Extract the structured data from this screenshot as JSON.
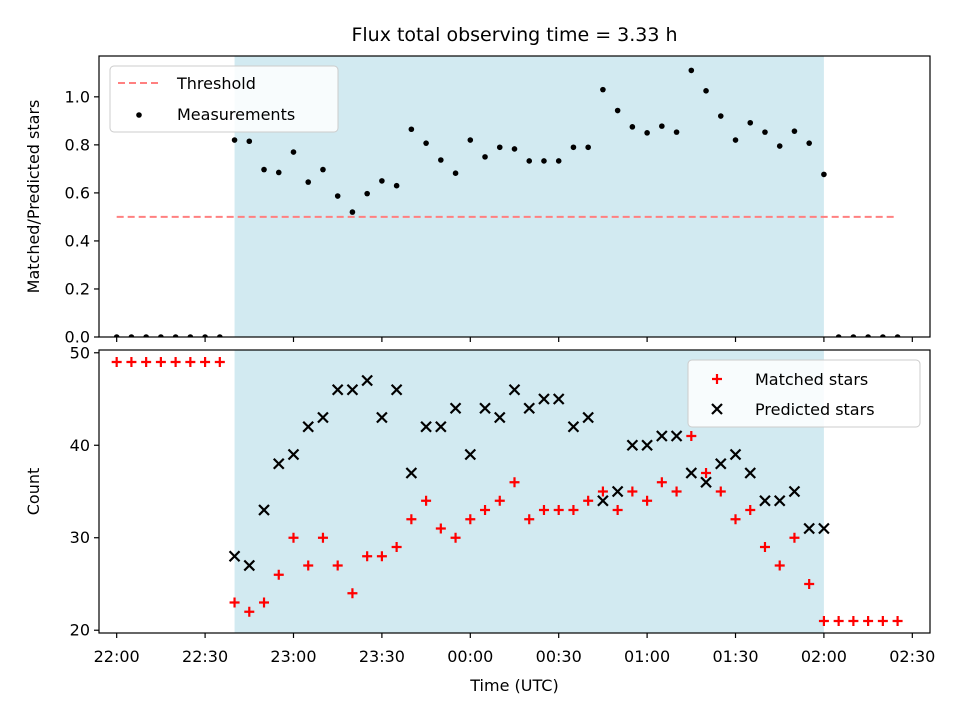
{
  "chart_data": [
    {
      "type": "scatter",
      "title": "Flux total observing time = 3.33 h",
      "xlabel": "",
      "ylabel": "Matched/Predicted stars",
      "xlim": [
        "21:54",
        "02:36"
      ],
      "ylim": [
        0,
        1.17
      ],
      "yticks": [
        "0.0",
        "0.2",
        "0.4",
        "0.6",
        "0.8",
        "1.0"
      ],
      "shaded_span": [
        "22:40",
        "02:00"
      ],
      "shaded_color": "#add8e6",
      "legend": {
        "placement": "upper left"
      },
      "series": [
        {
          "name": "Threshold",
          "style": "dashed-line",
          "color": "#ff8080",
          "points": [
            [
              "22:00",
              0.5
            ],
            [
              "02:25",
              0.5
            ]
          ]
        },
        {
          "name": "Measurements",
          "style": "dot",
          "color": "#000000",
          "points": [
            [
              "22:00",
              0
            ],
            [
              "22:05",
              0
            ],
            [
              "22:10",
              0
            ],
            [
              "22:15",
              0
            ],
            [
              "22:20",
              0
            ],
            [
              "22:25",
              0
            ],
            [
              "22:30",
              0
            ],
            [
              "22:35",
              0
            ],
            [
              "22:40",
              0.82
            ],
            [
              "22:45",
              0.815
            ],
            [
              "22:50",
              0.697
            ],
            [
              "22:55",
              0.685
            ],
            [
              "23:00",
              0.77
            ],
            [
              "23:05",
              0.645
            ],
            [
              "23:10",
              0.697
            ],
            [
              "23:15",
              0.587
            ],
            [
              "23:20",
              0.52
            ],
            [
              "23:25",
              0.597
            ],
            [
              "23:30",
              0.65
            ],
            [
              "23:35",
              0.63
            ],
            [
              "23:40",
              0.865
            ],
            [
              "23:45",
              0.807
            ],
            [
              "23:50",
              0.737
            ],
            [
              "23:55",
              0.682
            ],
            [
              "00:00",
              0.82
            ],
            [
              "00:05",
              0.75
            ],
            [
              "00:10",
              0.79
            ],
            [
              "00:15",
              0.783
            ],
            [
              "00:20",
              0.733
            ],
            [
              "00:25",
              0.733
            ],
            [
              "00:30",
              0.733
            ],
            [
              "00:35",
              0.79
            ],
            [
              "00:40",
              0.79
            ],
            [
              "00:45",
              1.03
            ],
            [
              "00:50",
              0.943
            ],
            [
              "00:55",
              0.875
            ],
            [
              "01:00",
              0.85
            ],
            [
              "01:05",
              0.878
            ],
            [
              "01:10",
              0.853
            ],
            [
              "01:15",
              1.11
            ],
            [
              "01:20",
              1.025
            ],
            [
              "01:25",
              0.92
            ],
            [
              "01:30",
              0.82
            ],
            [
              "01:35",
              0.892
            ],
            [
              "01:40",
              0.853
            ],
            [
              "01:45",
              0.795
            ],
            [
              "01:50",
              0.857
            ],
            [
              "01:55",
              0.807
            ],
            [
              "02:00",
              0.677
            ],
            [
              "02:05",
              0
            ],
            [
              "02:10",
              0
            ],
            [
              "02:15",
              0
            ],
            [
              "02:20",
              0
            ],
            [
              "02:25",
              0
            ]
          ]
        }
      ]
    },
    {
      "type": "scatter",
      "title": "",
      "xlabel": "Time (UTC)",
      "ylabel": "Count",
      "xlim": [
        "21:54",
        "02:36"
      ],
      "ylim": [
        19.7,
        50.3
      ],
      "yticks": [
        "20",
        "30",
        "40",
        "50"
      ],
      "xticks": [
        "22:00",
        "22:30",
        "23:00",
        "23:30",
        "00:00",
        "00:30",
        "01:00",
        "01:30",
        "02:00",
        "02:30"
      ],
      "shaded_span": [
        "22:40",
        "02:00"
      ],
      "shaded_color": "#add8e6",
      "legend": {
        "placement": "upper right"
      },
      "series": [
        {
          "name": "Matched stars",
          "style": "plus",
          "color": "#ff0000",
          "points": [
            [
              "22:00",
              49
            ],
            [
              "22:05",
              49
            ],
            [
              "22:10",
              49
            ],
            [
              "22:15",
              49
            ],
            [
              "22:20",
              49
            ],
            [
              "22:25",
              49
            ],
            [
              "22:30",
              49
            ],
            [
              "22:35",
              49
            ],
            [
              "22:40",
              23
            ],
            [
              "22:45",
              22
            ],
            [
              "22:50",
              23
            ],
            [
              "22:55",
              26
            ],
            [
              "23:00",
              30
            ],
            [
              "23:05",
              27
            ],
            [
              "23:10",
              30
            ],
            [
              "23:15",
              27
            ],
            [
              "23:20",
              24
            ],
            [
              "23:25",
              28
            ],
            [
              "23:30",
              28
            ],
            [
              "23:35",
              29
            ],
            [
              "23:40",
              32
            ],
            [
              "23:45",
              34
            ],
            [
              "23:50",
              31
            ],
            [
              "23:55",
              30
            ],
            [
              "00:00",
              32
            ],
            [
              "00:05",
              33
            ],
            [
              "00:10",
              34
            ],
            [
              "00:15",
              36
            ],
            [
              "00:20",
              32
            ],
            [
              "00:25",
              33
            ],
            [
              "00:30",
              33
            ],
            [
              "00:35",
              33
            ],
            [
              "00:40",
              34
            ],
            [
              "00:45",
              35
            ],
            [
              "00:50",
              33
            ],
            [
              "00:55",
              35
            ],
            [
              "01:00",
              34
            ],
            [
              "01:05",
              36
            ],
            [
              "01:10",
              35
            ],
            [
              "01:15",
              41
            ],
            [
              "01:20",
              37
            ],
            [
              "01:25",
              35
            ],
            [
              "01:30",
              32
            ],
            [
              "01:35",
              33
            ],
            [
              "01:40",
              29
            ],
            [
              "01:45",
              27
            ],
            [
              "01:50",
              30
            ],
            [
              "01:55",
              25
            ],
            [
              "02:00",
              21
            ],
            [
              "02:05",
              21
            ],
            [
              "02:10",
              21
            ],
            [
              "02:15",
              21
            ],
            [
              "02:20",
              21
            ],
            [
              "02:25",
              21
            ]
          ]
        },
        {
          "name": "Predicted stars",
          "style": "x",
          "color": "#000000",
          "points": [
            [
              "22:40",
              28
            ],
            [
              "22:45",
              27
            ],
            [
              "22:50",
              33
            ],
            [
              "22:55",
              38
            ],
            [
              "23:00",
              39
            ],
            [
              "23:05",
              42
            ],
            [
              "23:10",
              43
            ],
            [
              "23:15",
              46
            ],
            [
              "23:20",
              46
            ],
            [
              "23:25",
              47
            ],
            [
              "23:30",
              43
            ],
            [
              "23:35",
              46
            ],
            [
              "23:40",
              37
            ],
            [
              "23:45",
              42
            ],
            [
              "23:50",
              42
            ],
            [
              "23:55",
              44
            ],
            [
              "00:00",
              39
            ],
            [
              "00:05",
              44
            ],
            [
              "00:10",
              43
            ],
            [
              "00:15",
              46
            ],
            [
              "00:20",
              44
            ],
            [
              "00:25",
              45
            ],
            [
              "00:30",
              45
            ],
            [
              "00:35",
              42
            ],
            [
              "00:40",
              43
            ],
            [
              "00:45",
              34
            ],
            [
              "00:50",
              35
            ],
            [
              "00:55",
              40
            ],
            [
              "01:00",
              40
            ],
            [
              "01:05",
              41
            ],
            [
              "01:10",
              41
            ],
            [
              "01:15",
              37
            ],
            [
              "01:20",
              36
            ],
            [
              "01:25",
              38
            ],
            [
              "01:30",
              39
            ],
            [
              "01:35",
              37
            ],
            [
              "01:40",
              34
            ],
            [
              "01:45",
              34
            ],
            [
              "01:50",
              35
            ],
            [
              "01:55",
              31
            ],
            [
              "02:00",
              31
            ]
          ]
        }
      ]
    }
  ]
}
